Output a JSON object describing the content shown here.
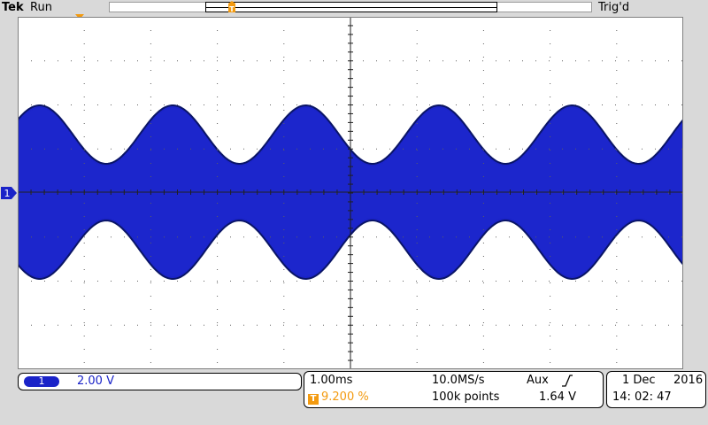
{
  "header": {
    "brand": "Tek",
    "run_state": "Run",
    "trigger_state": "Trig'd"
  },
  "channel1": {
    "marker_label": "1",
    "badge": "1",
    "volts_per_div": "2.00 V",
    "color": "#1a23c8"
  },
  "horizontal": {
    "time_per_div": "1.00ms",
    "trigger_position_marker": "T",
    "trigger_position": "9.200 %",
    "sample_rate": "10.0MS/s",
    "record_length": "100k points",
    "trigger_source": "Aux",
    "trigger_slope_icon": "rising-edge-icon",
    "trigger_level": "1.64 V"
  },
  "datetime": {
    "date_day": "1 Dec",
    "year": "2016",
    "time": "14: 02: 47"
  },
  "colors": {
    "trigger_marker": "#f39a0f",
    "waveform": "#1a23c8",
    "envelope": "#0a1566",
    "graticule": "#606060"
  },
  "waveform": {
    "type": "amplitude-modulated",
    "envelope_cycles": 5
  }
}
